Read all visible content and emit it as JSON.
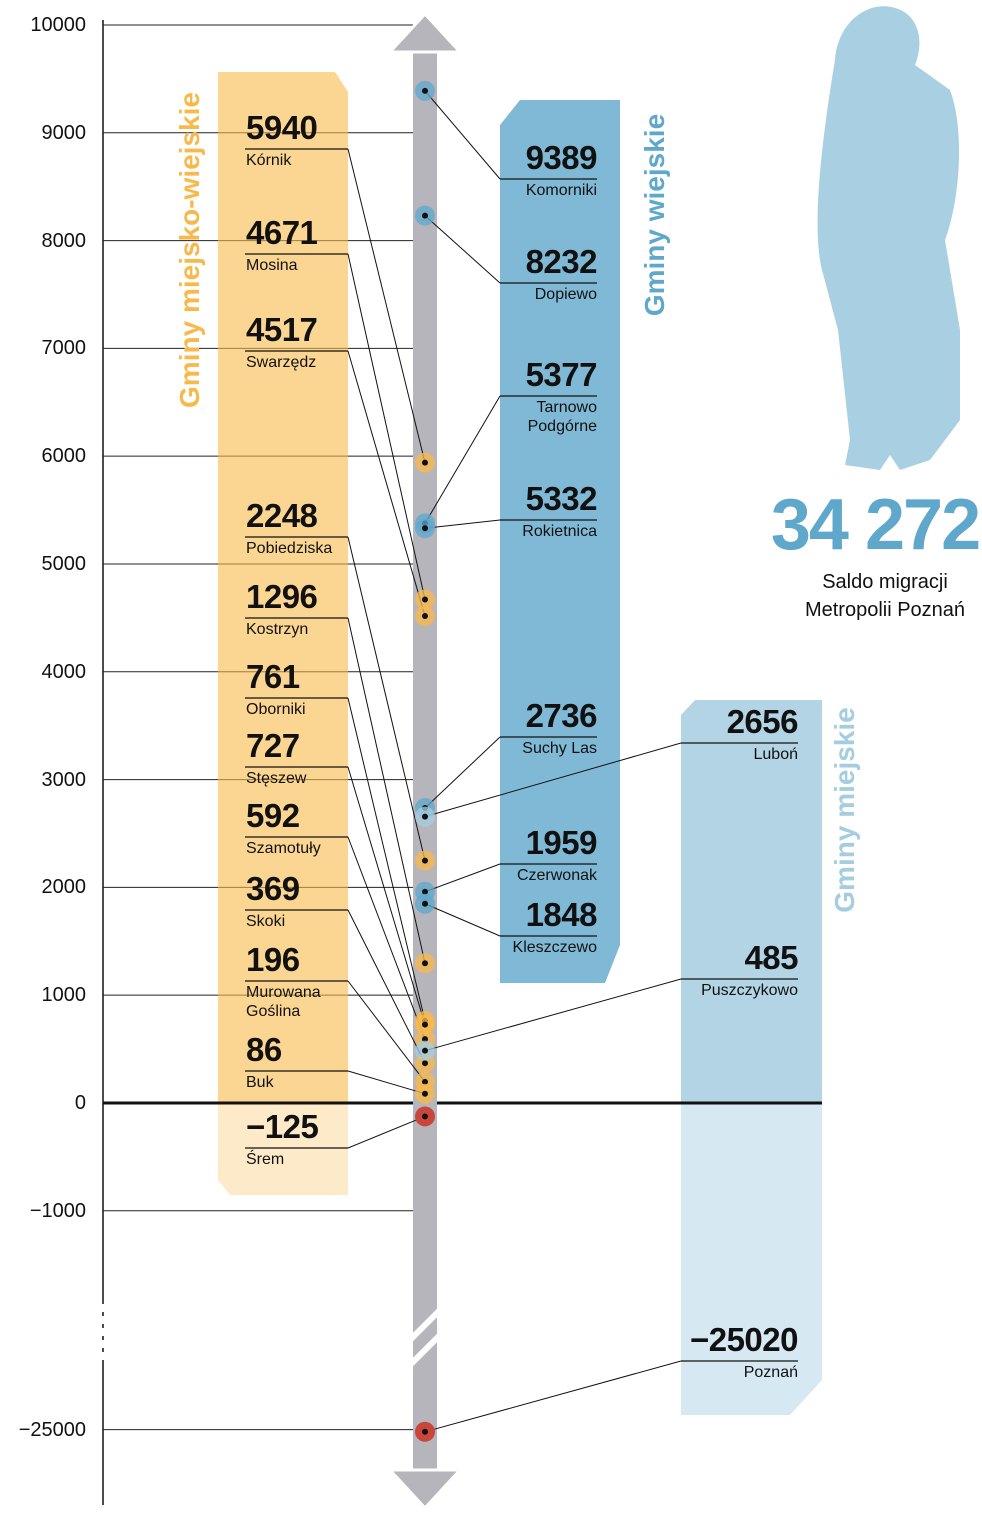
{
  "chart_data": {
    "type": "migration-scale",
    "yticks": [
      10000,
      9000,
      8000,
      7000,
      6000,
      5000,
      4000,
      3000,
      2000,
      1000,
      0,
      {
        "value": -1000,
        "label": "−1000"
      },
      {
        "value": -25000,
        "label": "−25000"
      }
    ],
    "ylim": [
      -1800,
      10000
    ],
    "ylim_lower": [
      -25700,
      -24000
    ],
    "negative_color": "#c8473a",
    "series": [
      {
        "name": "Gminy miejsko-wiejskie",
        "color": "#f9b94a",
        "categories": [
          "Kórnik",
          "Mosina",
          "Swarzędz",
          "Pobiedziska",
          "Kostrzyn",
          "Oborniki",
          "Stęszew",
          "Szamotuły",
          "Skoki",
          "Murowana Goślina",
          "Buk",
          "Śrem"
        ],
        "values": [
          5940,
          4671,
          4517,
          2248,
          1296,
          761,
          727,
          592,
          369,
          196,
          86,
          -125
        ],
        "value_labels": [
          "5940",
          "4671",
          "4517",
          "2248",
          "1296",
          "761",
          "727",
          "592",
          "369",
          "196",
          "86",
          "−125"
        ]
      },
      {
        "name": "Gminy wiejskie",
        "color": "#5fa8cc",
        "categories": [
          "Komorniki",
          "Dopiewo",
          "Tarnowo Podgórne",
          "Rokietnica",
          "Suchy Las",
          "Czerwonak",
          "Kleszczewo"
        ],
        "values": [
          9389,
          8232,
          5377,
          5332,
          2736,
          1959,
          1848
        ],
        "value_labels": [
          "9389",
          "8232",
          "5377",
          "5332",
          "2736",
          "1959",
          "1848"
        ]
      },
      {
        "name": "Gminy miejskie",
        "color": "#a5cde0",
        "categories": [
          "Luboń",
          "Puszczykowo",
          "Poznań"
        ],
        "values": [
          2656,
          485,
          -25020
        ],
        "value_labels": [
          "2656",
          "485",
          "−25020"
        ]
      }
    ],
    "total": "34 272",
    "total_caption": "Saldo migracji Metropolii Poznań"
  }
}
